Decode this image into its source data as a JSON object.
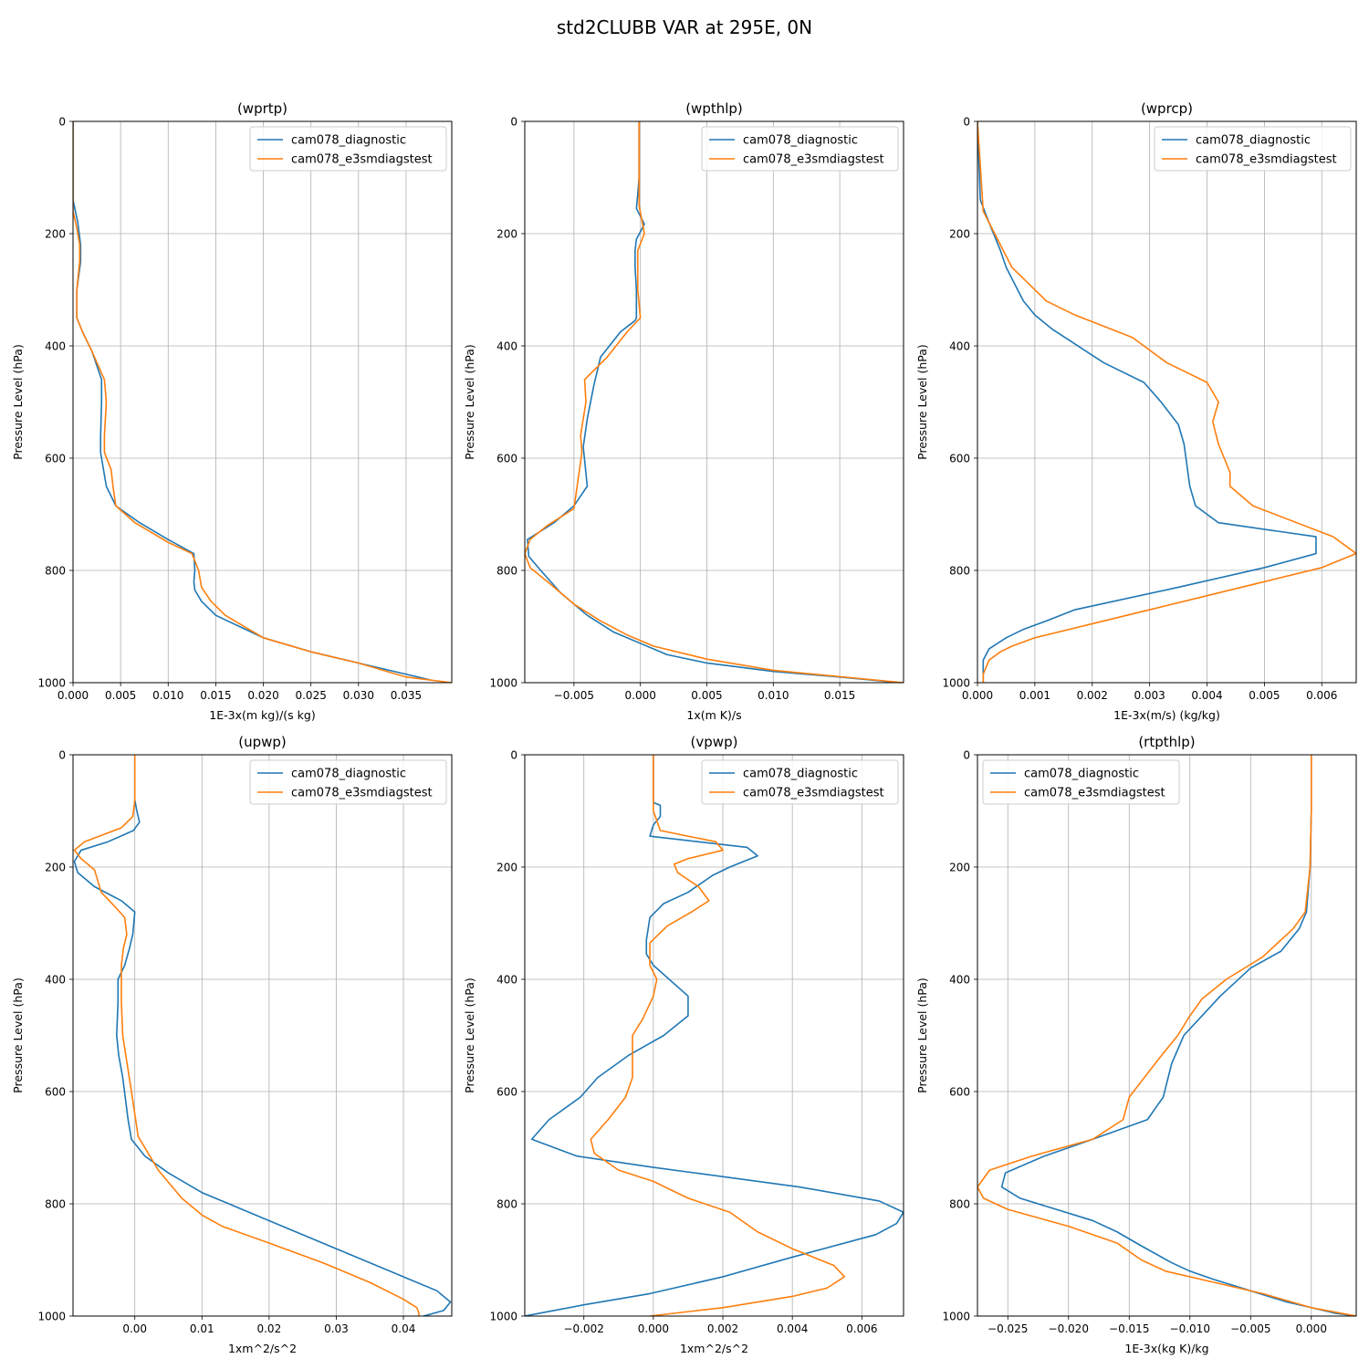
{
  "figure_title": "std2CLUBB VAR at 295E, 0N",
  "series_names": [
    "cam078_diagnostic",
    "cam078_e3smdiagstest"
  ],
  "series_colors": [
    "#1f77b4",
    "#ff7f0e"
  ],
  "chart_data": [
    {
      "type": "line",
      "title": "(wprtp)",
      "xlabel": "1E-3x(m kg)/(s kg)",
      "ylabel": "Pressure Level (hPa)",
      "xlim": [
        0.0,
        0.0398
      ],
      "ylim": [
        1000,
        0
      ],
      "xticks": [
        0.0,
        0.005,
        0.01,
        0.015,
        0.02,
        0.025,
        0.03,
        0.035
      ],
      "xticklabels": [
        "0.000",
        "0.005",
        "0.010",
        "0.015",
        "0.020",
        "0.025",
        "0.030",
        "0.035"
      ],
      "yticks": [
        0,
        200,
        400,
        600,
        800,
        1000
      ],
      "yticklabels": [
        "0",
        "200",
        "400",
        "600",
        "800",
        "1000"
      ],
      "legend_loc": "upper right",
      "grid": true,
      "series": [
        {
          "name": "cam078_diagnostic",
          "x": [
            0,
            0.0,
            0.0005,
            0.0008,
            0.0008,
            0.0004,
            0.0004,
            0.001,
            0.002,
            0.003,
            0.003,
            0.0029,
            0.0029,
            0.0035,
            0.0045,
            0.007,
            0.01,
            0.0127,
            0.0128,
            0.0127,
            0.0128,
            0.0135,
            0.015,
            0.0175,
            0.02,
            0.025,
            0.03,
            0.035,
            0.0375
          ],
          "y": [
            0,
            140,
            180,
            220,
            250,
            300,
            350,
            375,
            410,
            460,
            500,
            560,
            590,
            650,
            685,
            715,
            745,
            770,
            800,
            820,
            835,
            855,
            880,
            900,
            920,
            945,
            965,
            985,
            995
          ]
        },
        {
          "name": "cam078_e3smdiagstest",
          "x": [
            0,
            0.0,
            0.0004,
            0.0007,
            0.0007,
            0.0004,
            0.0004,
            0.001,
            0.002,
            0.0033,
            0.0035,
            0.0033,
            0.0033,
            0.004,
            0.0042,
            0.0045,
            0.0065,
            0.01,
            0.0125,
            0.0132,
            0.0135,
            0.0145,
            0.016,
            0.02,
            0.025,
            0.03,
            0.035,
            0.0398
          ],
          "y": [
            0,
            160,
            190,
            220,
            250,
            300,
            350,
            375,
            410,
            460,
            500,
            560,
            590,
            620,
            650,
            685,
            715,
            750,
            770,
            800,
            830,
            855,
            880,
            920,
            945,
            965,
            990,
            1000
          ]
        }
      ]
    },
    {
      "type": "line",
      "title": "(wpthlp)",
      "xlabel": "1x(m K)/s",
      "ylabel": "Pressure Level (hPa)",
      "xlim": [
        -0.0087,
        0.0198
      ],
      "ylim": [
        1000,
        0
      ],
      "xticks": [
        -0.005,
        0.0,
        0.005,
        0.01,
        0.015
      ],
      "xticklabels": [
        "−0.005",
        "0.000",
        "0.005",
        "0.010",
        "0.015"
      ],
      "yticks": [
        0,
        200,
        400,
        600,
        800,
        1000
      ],
      "yticklabels": [
        "0",
        "200",
        "400",
        "600",
        "800",
        "1000"
      ],
      "legend_loc": "upper right",
      "grid": true,
      "series": [
        {
          "name": "cam078_diagnostic",
          "x": [
            -0.0001,
            -0.0001,
            -0.0002,
            -0.0003,
            0.0003,
            -0.0003,
            -0.0004,
            -0.0004,
            -0.0003,
            -0.0003,
            -0.0004,
            -0.0015,
            -0.003,
            -0.0035,
            -0.004,
            -0.0043,
            -0.004,
            -0.005,
            -0.0065,
            -0.0085,
            -0.0084,
            -0.0075,
            -0.006,
            -0.004,
            -0.002,
            0.0,
            0.002,
            0.005,
            0.01,
            0.015,
            0.0195
          ],
          "y": [
            0,
            100,
            130,
            155,
            183,
            210,
            230,
            260,
            300,
            350,
            355,
            375,
            420,
            470,
            530,
            580,
            650,
            685,
            715,
            745,
            775,
            800,
            840,
            880,
            910,
            930,
            950,
            965,
            980,
            990,
            1000
          ]
        },
        {
          "name": "cam078_e3smdiagstest",
          "x": [
            -0.0001,
            -0.0001,
            -0.0001,
            0.0003,
            -0.0002,
            -0.0002,
            0.0,
            -0.001,
            -0.0025,
            -0.0042,
            -0.0041,
            -0.0045,
            -0.0044,
            -0.005,
            -0.007,
            -0.0083,
            -0.0087,
            -0.0083,
            -0.007,
            -0.005,
            -0.003,
            -0.001,
            0.001,
            0.005,
            0.01,
            0.0198
          ],
          "y": [
            0,
            100,
            150,
            200,
            230,
            300,
            350,
            375,
            420,
            460,
            500,
            560,
            590,
            690,
            720,
            745,
            770,
            795,
            820,
            860,
            890,
            915,
            935,
            958,
            978,
            1000
          ]
        }
      ]
    },
    {
      "type": "line",
      "title": "(wprcp)",
      "xlabel": "1E-3x(m/s) (kg/kg)",
      "ylabel": "Pressure Level (hPa)",
      "xlim": [
        0.0,
        0.0066
      ],
      "ylim": [
        1000,
        0
      ],
      "xticks": [
        0.0,
        0.001,
        0.002,
        0.003,
        0.004,
        0.005,
        0.006
      ],
      "xticklabels": [
        "0.000",
        "0.001",
        "0.002",
        "0.003",
        "0.004",
        "0.005",
        "0.006"
      ],
      "yticks": [
        0,
        200,
        400,
        600,
        800,
        1000
      ],
      "yticklabels": [
        "0",
        "200",
        "400",
        "600",
        "800",
        "1000"
      ],
      "legend_loc": "upper right",
      "grid": true,
      "series": [
        {
          "name": "cam078_diagnostic",
          "x": [
            0.0,
            5e-05,
            0.0002,
            0.0004,
            0.0005,
            0.0006,
            0.0008,
            0.001,
            0.0013,
            0.0016,
            0.0022,
            0.0029,
            0.0032,
            0.0035,
            0.0036,
            0.0037,
            0.0038,
            0.0042,
            0.0059,
            0.0059,
            0.005,
            0.0035,
            0.0017,
            0.0012,
            0.0008,
            0.0005,
            0.0002,
            0.0001,
            0.0001,
            0.0001
          ],
          "y": [
            0,
            140,
            180,
            230,
            260,
            280,
            320,
            345,
            370,
            390,
            430,
            465,
            500,
            540,
            575,
            650,
            685,
            715,
            740,
            770,
            795,
            830,
            870,
            890,
            905,
            920,
            940,
            960,
            980,
            1000
          ]
        },
        {
          "name": "cam078_e3smdiagstest",
          "x": [
            0.0,
            0.0001,
            0.0003,
            0.0005,
            0.0006,
            0.0008,
            0.0012,
            0.0017,
            0.0027,
            0.0033,
            0.004,
            0.0042,
            0.0041,
            0.0042,
            0.0043,
            0.0044,
            0.0044,
            0.0048,
            0.0062,
            0.0066,
            0.006,
            0.005,
            0.004,
            0.003,
            0.002,
            0.001,
            0.0006,
            0.0004,
            0.0002,
            0.0001,
            0.0001
          ],
          "y": [
            0,
            160,
            200,
            240,
            260,
            280,
            320,
            345,
            385,
            430,
            465,
            500,
            535,
            575,
            600,
            625,
            650,
            685,
            740,
            770,
            795,
            820,
            845,
            870,
            895,
            920,
            935,
            945,
            960,
            985,
            1000
          ]
        }
      ]
    },
    {
      "type": "line",
      "title": "(upwp)",
      "xlabel": "1xm^2/s^2",
      "ylabel": "Pressure Level (hPa)",
      "xlim": [
        -0.0092,
        0.0472
      ],
      "ylim": [
        1000,
        0
      ],
      "xticks": [
        0.0,
        0.01,
        0.02,
        0.03,
        0.04
      ],
      "xticklabels": [
        "0.00",
        "0.01",
        "0.02",
        "0.03",
        "0.04"
      ],
      "yticks": [
        0,
        200,
        400,
        600,
        800,
        1000
      ],
      "yticklabels": [
        "0",
        "200",
        "400",
        "600",
        "800",
        "1000"
      ],
      "legend_loc": "upper right",
      "grid": true,
      "series": [
        {
          "name": "cam078_diagnostic",
          "x": [
            0.0,
            0.0,
            0.0003,
            0.0007,
            -0.0002,
            -0.004,
            -0.008,
            -0.009,
            -0.0085,
            -0.006,
            -0.002,
            0.0,
            -0.0003,
            -0.0008,
            -0.0015,
            -0.0025,
            -0.0025,
            -0.0027,
            -0.0024,
            -0.0018,
            -0.001,
            -0.0005,
            0.0015,
            0.005,
            0.01,
            0.02,
            0.03,
            0.04,
            0.045,
            0.047,
            0.046,
            0.043
          ],
          "y": [
            0,
            80,
            100,
            120,
            135,
            155,
            170,
            190,
            210,
            235,
            260,
            280,
            320,
            345,
            375,
            400,
            440,
            500,
            535,
            575,
            650,
            685,
            715,
            745,
            780,
            830,
            880,
            930,
            955,
            975,
            990,
            1000
          ]
        },
        {
          "name": "cam078_e3smdiagstest",
          "x": [
            0.0,
            0.0,
            -0.0003,
            -0.002,
            -0.0075,
            -0.009,
            -0.008,
            -0.006,
            -0.005,
            -0.003,
            -0.0015,
            -0.0012,
            -0.0017,
            -0.002,
            -0.002,
            -0.0018,
            -0.0005,
            0.0005,
            0.0035,
            0.007,
            0.01,
            0.013,
            0.02,
            0.028,
            0.035,
            0.04,
            0.042,
            0.0423,
            0.0423
          ],
          "y": [
            0,
            80,
            110,
            130,
            155,
            170,
            185,
            205,
            245,
            270,
            290,
            320,
            345,
            375,
            440,
            500,
            600,
            680,
            740,
            790,
            820,
            840,
            870,
            905,
            940,
            970,
            985,
            995,
            1000
          ]
        }
      ]
    },
    {
      "type": "line",
      "title": "(vpwp)",
      "xlabel": "1xm^2/s^2",
      "ylabel": "Pressure Level (hPa)",
      "xlim": [
        -0.0037,
        0.0072
      ],
      "ylim": [
        1000,
        0
      ],
      "xticks": [
        -0.002,
        0.0,
        0.002,
        0.004,
        0.006
      ],
      "xticklabels": [
        "−0.002",
        "0.000",
        "0.002",
        "0.004",
        "0.006"
      ],
      "yticks": [
        0,
        200,
        400,
        600,
        800,
        1000
      ],
      "yticklabels": [
        "0",
        "200",
        "400",
        "600",
        "800",
        "1000"
      ],
      "legend_loc": "upper right",
      "grid": true,
      "series": [
        {
          "name": "cam078_diagnostic",
          "x": [
            0.0,
            0.0,
            0.0002,
            0.0002,
            0.0,
            -0.0001,
            0.0027,
            0.003,
            0.0022,
            0.0017,
            0.001,
            0.0003,
            -0.0001,
            -0.0002,
            -0.0002,
            -0.0001,
            0.0,
            0.001,
            0.001,
            0.0003,
            -0.0007,
            -0.0016,
            -0.0021,
            -0.003,
            -0.0035,
            -0.0022,
            0.0,
            0.0042,
            0.0065,
            0.0072,
            0.007,
            0.0064,
            0.004,
            0.002,
            -0.0001,
            -0.002,
            -0.0037
          ],
          "y": [
            0,
            85,
            90,
            110,
            125,
            145,
            165,
            180,
            200,
            215,
            245,
            265,
            290,
            330,
            355,
            365,
            375,
            430,
            465,
            500,
            535,
            575,
            610,
            650,
            685,
            715,
            735,
            770,
            795,
            815,
            835,
            855,
            895,
            930,
            960,
            980,
            1000
          ]
        },
        {
          "name": "cam078_e3smdiagstest",
          "x": [
            0.0,
            0.0,
            0.0,
            0.0002,
            0.0018,
            0.002,
            0.001,
            0.0006,
            0.0007,
            0.0013,
            0.0016,
            0.0011,
            0.0004,
            -0.0001,
            -0.0001,
            0.0001,
            0.0,
            -0.0003,
            -0.0006,
            -0.0006,
            -0.0008,
            -0.0013,
            -0.0018,
            -0.0017,
            -0.001,
            0.0,
            0.001,
            0.0022,
            0.003,
            0.004,
            0.0052,
            0.0055,
            0.005,
            0.004,
            0.002,
            -0.0001
          ],
          "y": [
            0,
            85,
            100,
            135,
            155,
            170,
            185,
            195,
            210,
            235,
            260,
            280,
            305,
            335,
            375,
            400,
            430,
            470,
            500,
            575,
            610,
            650,
            685,
            710,
            740,
            760,
            790,
            815,
            850,
            880,
            910,
            930,
            950,
            965,
            985,
            1000
          ]
        }
      ]
    },
    {
      "type": "line",
      "title": "(rtpthlp)",
      "xlabel": "1E-3x(kg K)/kg",
      "ylabel": "Pressure Level (hPa)",
      "xlim": [
        -0.0275,
        0.0037
      ],
      "ylim": [
        1000,
        0
      ],
      "xticks": [
        -0.025,
        -0.02,
        -0.015,
        -0.01,
        -0.005,
        0.0
      ],
      "xticklabels": [
        "−0.025",
        "−0.020",
        "−0.015",
        "−0.010",
        "−0.005",
        "0.000"
      ],
      "yticks": [
        0,
        200,
        400,
        600,
        800,
        1000
      ],
      "yticklabels": [
        "0",
        "200",
        "400",
        "600",
        "800",
        "1000"
      ],
      "legend_loc": "upper left",
      "grid": true,
      "series": [
        {
          "name": "cam078_diagnostic",
          "x": [
            0.0,
            0.0,
            -0.0001,
            -0.0004,
            -0.001,
            -0.0025,
            -0.005,
            -0.0075,
            -0.009,
            -0.0105,
            -0.0115,
            -0.0122,
            -0.0135,
            -0.018,
            -0.022,
            -0.0252,
            -0.0255,
            -0.024,
            -0.018,
            -0.016,
            -0.014,
            -0.0115,
            -0.01,
            -0.008,
            -0.005,
            -0.002,
            0.0,
            0.002,
            0.0037
          ],
          "y": [
            0,
            100,
            200,
            280,
            310,
            350,
            380,
            430,
            465,
            500,
            550,
            610,
            650,
            685,
            715,
            745,
            770,
            790,
            830,
            850,
            875,
            905,
            920,
            935,
            955,
            975,
            985,
            995,
            1000
          ]
        },
        {
          "name": "cam078_e3smdiagstest",
          "x": [
            0.0,
            0.0,
            -0.0001,
            -0.0005,
            -0.0015,
            -0.004,
            -0.007,
            -0.009,
            -0.01,
            -0.011,
            -0.0125,
            -0.015,
            -0.0155,
            -0.018,
            -0.023,
            -0.0265,
            -0.0275,
            -0.027,
            -0.025,
            -0.02,
            -0.016,
            -0.014,
            -0.012,
            -0.008,
            -0.004,
            0.0,
            0.0037
          ],
          "y": [
            0,
            100,
            200,
            280,
            310,
            360,
            400,
            435,
            465,
            500,
            540,
            610,
            650,
            685,
            715,
            740,
            770,
            790,
            810,
            840,
            870,
            900,
            920,
            940,
            960,
            985,
            1000
          ]
        }
      ]
    }
  ]
}
